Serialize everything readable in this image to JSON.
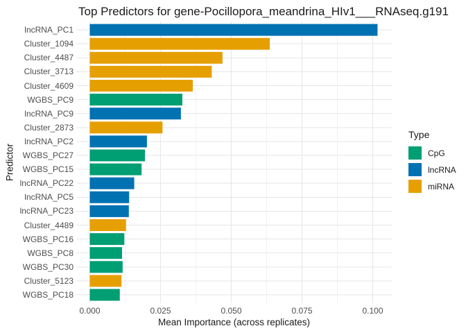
{
  "title": "Top Predictors for gene-Pocillopora_meandrina_HIv1___RNAseq.g191",
  "chart_data": {
    "type": "bar",
    "orientation": "horizontal",
    "title": "Top Predictors for gene-Pocillopora_meandrina_HIv1___RNAseq.g191",
    "xlabel": "Mean Importance (across replicates)",
    "ylabel": "Predictor",
    "xlim": [
      0,
      0.1067
    ],
    "grid": "major+minor",
    "x_major_ticks": [
      0.0,
      0.025,
      0.05,
      0.075,
      0.1
    ],
    "x_tick_labels": [
      "0.000",
      "0.025",
      "0.050",
      "0.075",
      "0.100"
    ],
    "x_minor_ticks": [
      0.0125,
      0.0375,
      0.0625,
      0.0875
    ],
    "categories": [
      "lncRNA_PC1",
      "Cluster_1094",
      "Cluster_4487",
      "Cluster_3713",
      "Cluster_4609",
      "WGBS_PC9",
      "lncRNA_PC9",
      "Cluster_2873",
      "lncRNA_PC2",
      "WGBS_PC27",
      "WGBS_PC15",
      "lncRNA_PC22",
      "lncRNA_PC5",
      "lncRNA_PC23",
      "Cluster_4489",
      "WGBS_PC16",
      "WGBS_PC8",
      "WGBS_PC30",
      "Cluster_5123",
      "WGBS_PC18"
    ],
    "bars": [
      {
        "predictor": "lncRNA_PC1",
        "type": "lncRNA",
        "value": 0.1017
      },
      {
        "predictor": "Cluster_1094",
        "type": "miRNA",
        "value": 0.0636
      },
      {
        "predictor": "Cluster_4487",
        "type": "miRNA",
        "value": 0.0469
      },
      {
        "predictor": "Cluster_3713",
        "type": "miRNA",
        "value": 0.0431
      },
      {
        "predictor": "Cluster_4609",
        "type": "miRNA",
        "value": 0.0364
      },
      {
        "predictor": "WGBS_PC9",
        "type": "CpG",
        "value": 0.0327
      },
      {
        "predictor": "lncRNA_PC9",
        "type": "lncRNA",
        "value": 0.0322
      },
      {
        "predictor": "Cluster_2873",
        "type": "miRNA",
        "value": 0.0257
      },
      {
        "predictor": "lncRNA_PC2",
        "type": "lncRNA",
        "value": 0.0202
      },
      {
        "predictor": "WGBS_PC27",
        "type": "CpG",
        "value": 0.0195
      },
      {
        "predictor": "WGBS_PC15",
        "type": "CpG",
        "value": 0.0183
      },
      {
        "predictor": "lncRNA_PC22",
        "type": "lncRNA",
        "value": 0.0157
      },
      {
        "predictor": "lncRNA_PC5",
        "type": "lncRNA",
        "value": 0.0139
      },
      {
        "predictor": "lncRNA_PC23",
        "type": "lncRNA",
        "value": 0.0138
      },
      {
        "predictor": "Cluster_4489",
        "type": "miRNA",
        "value": 0.0128
      },
      {
        "predictor": "WGBS_PC16",
        "type": "CpG",
        "value": 0.0122
      },
      {
        "predictor": "WGBS_PC8",
        "type": "CpG",
        "value": 0.0114
      },
      {
        "predictor": "WGBS_PC30",
        "type": "CpG",
        "value": 0.0116
      },
      {
        "predictor": "Cluster_5123",
        "type": "miRNA",
        "value": 0.0112
      },
      {
        "predictor": "WGBS_PC18",
        "type": "CpG",
        "value": 0.0106
      }
    ],
    "colors": {
      "CpG": "#009E73",
      "lncRNA": "#0072B2",
      "miRNA": "#E69F00"
    },
    "grid_colors": {
      "major": "#E6E6E6",
      "minor": "#F2F2F2"
    },
    "axis_text_color": "#4d4d4d",
    "legend": {
      "title": "Type",
      "position": "right",
      "entries": [
        {
          "label": "CpG",
          "color": "#009E73"
        },
        {
          "label": "lncRNA",
          "color": "#0072B2"
        },
        {
          "label": "miRNA",
          "color": "#E69F00"
        }
      ]
    }
  }
}
